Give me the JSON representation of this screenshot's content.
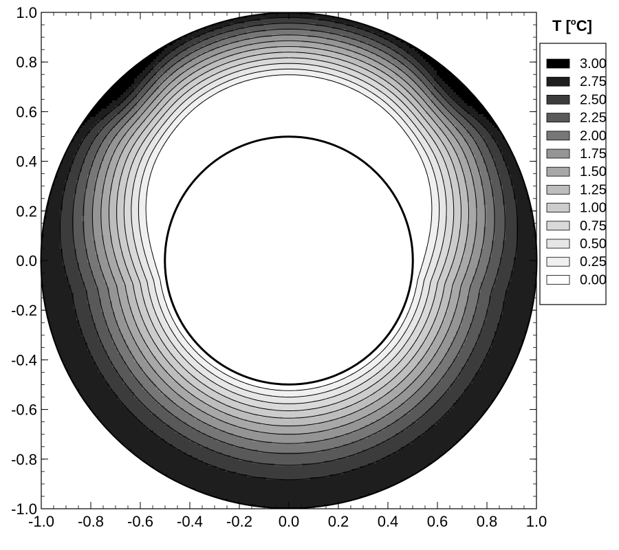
{
  "chart_data": {
    "type": "contour",
    "legend": {
      "title": "T",
      "unit_prefix": "[",
      "unit_sup": "o",
      "unit_letter": "C",
      "unit_suffix": "]",
      "levels": [
        "3.00",
        "2.75",
        "2.50",
        "2.25",
        "2.00",
        "1.75",
        "1.50",
        "1.25",
        "1.00",
        "0.75",
        "0.50",
        "0.25",
        "0.00"
      ],
      "level_values": [
        3.0,
        2.75,
        2.5,
        2.25,
        2.0,
        1.75,
        1.5,
        1.25,
        1.0,
        0.75,
        0.5,
        0.25,
        0.0
      ],
      "level_colors": [
        "#000000",
        "#1e1e1e",
        "#3c3c3c",
        "#595959",
        "#777777",
        "#959595",
        "#a8a8a8",
        "#bdbdbd",
        "#cccccc",
        "#d9d9d9",
        "#e6e6e6",
        "#f0f0f0",
        "#ffffff"
      ]
    },
    "xlim": [
      -1.0,
      1.0
    ],
    "ylim": [
      -1.0,
      1.0
    ],
    "x_ticks": [
      "-1.0",
      "-0.8",
      "-0.6",
      "-0.4",
      "-0.2",
      "0.0",
      "0.2",
      "0.4",
      "0.6",
      "0.8",
      "1.0"
    ],
    "x_tick_values": [
      -1.0,
      -0.8,
      -0.6,
      -0.4,
      -0.2,
      0.0,
      0.2,
      0.4,
      0.6,
      0.8,
      1.0
    ],
    "y_ticks": [
      "1.0",
      "0.8",
      "0.6",
      "0.4",
      "0.2",
      "0.0",
      "-0.2",
      "-0.4",
      "-0.6",
      "-0.8",
      "-1.0"
    ],
    "y_tick_values": [
      1.0,
      0.8,
      0.6,
      0.4,
      0.2,
      0.0,
      -0.2,
      -0.4,
      -0.6,
      -0.8,
      -1.0
    ],
    "domain": {
      "shape": "annulus",
      "inner_radius": 0.5,
      "outer_radius": 1.0
    },
    "outer_wall_temperature": 3.0,
    "inner_wall_temperature": 0.0,
    "grid": false,
    "legend_position": "right"
  }
}
